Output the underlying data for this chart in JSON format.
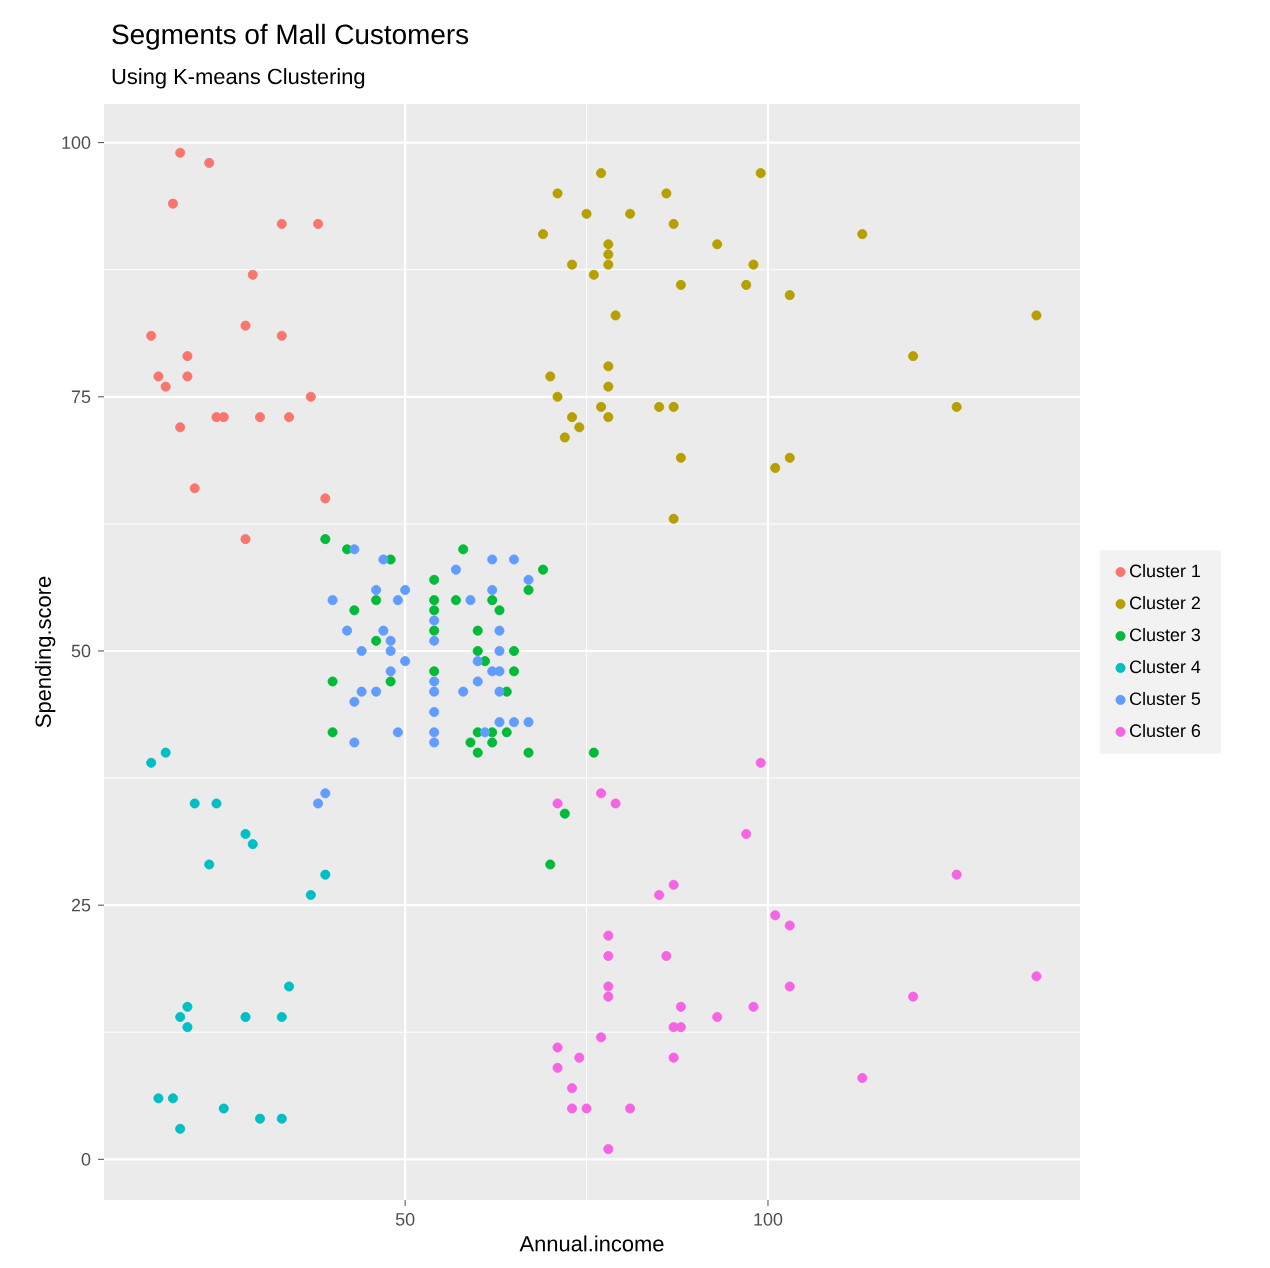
{
  "chart_data": {
    "type": "scatter",
    "title": "Segments of Mall Customers",
    "subtitle": "Using K-means Clustering",
    "xlabel": "Annual.income",
    "ylabel": "Spending.score",
    "xlim": [
      8.5,
      143
    ],
    "ylim": [
      -4,
      103.8
    ],
    "xticks": [
      50,
      100
    ],
    "yticks": [
      0,
      25,
      50,
      75,
      100
    ],
    "grid": true,
    "legend": "right",
    "marker": "circle",
    "series": [
      {
        "name": "Cluster 1",
        "color": "#f8766d",
        "x": [
          19,
          23,
          18,
          33,
          38,
          29,
          15,
          28,
          33,
          20,
          16,
          20,
          17,
          37,
          24,
          25,
          30,
          34,
          19,
          21,
          39,
          28
        ],
        "values": [
          99,
          98,
          94,
          92,
          92,
          87,
          81,
          82,
          81,
          79,
          77,
          77,
          76,
          75,
          73,
          73,
          73,
          73,
          72,
          66,
          65,
          61
        ]
      },
      {
        "name": "Cluster 2",
        "color": "#b79f00",
        "x": [
          77,
          99,
          71,
          86,
          75,
          81,
          87,
          69,
          113,
          78,
          93,
          78,
          73,
          78,
          98,
          76,
          88,
          97,
          103,
          79,
          137,
          120,
          70,
          78,
          71,
          78,
          85,
          87,
          126,
          77,
          73,
          78,
          74,
          72,
          88,
          101,
          103,
          87
        ],
        "values": [
          97,
          97,
          95,
          95,
          93,
          93,
          92,
          91,
          91,
          90,
          90,
          89,
          88,
          88,
          88,
          87,
          86,
          86,
          85,
          83,
          83,
          79,
          77,
          78,
          75,
          76,
          74,
          74,
          74,
          74,
          73,
          73,
          72,
          71,
          69,
          68,
          69,
          63
        ]
      },
      {
        "name": "Cluster 3",
        "color": "#00ba38",
        "x": [
          39,
          42,
          48,
          58,
          69,
          54,
          67,
          46,
          54,
          57,
          62,
          43,
          54,
          63,
          54,
          60,
          46,
          60,
          65,
          61,
          40,
          48,
          54,
          65,
          64,
          40,
          60,
          62,
          64,
          59,
          62,
          60,
          67,
          76,
          72,
          70
        ],
        "values": [
          61,
          60,
          59,
          60,
          58,
          57,
          56,
          55,
          55,
          55,
          55,
          54,
          54,
          54,
          52,
          52,
          51,
          50,
          50,
          49,
          47,
          47,
          48,
          48,
          46,
          42,
          42,
          42,
          42,
          41,
          41,
          40,
          40,
          40,
          34,
          29
        ]
      },
      {
        "name": "Cluster 4",
        "color": "#00bfc4",
        "x": [
          15,
          17,
          21,
          24,
          28,
          29,
          23,
          39,
          37,
          34,
          20,
          19,
          20,
          28,
          33,
          16,
          18,
          25,
          19,
          30,
          33
        ],
        "values": [
          39,
          40,
          35,
          35,
          32,
          31,
          29,
          28,
          26,
          17,
          15,
          14,
          13,
          14,
          14,
          6,
          6,
          5,
          3,
          4,
          4
        ]
      },
      {
        "name": "Cluster 5",
        "color": "#619cff",
        "x": [
          43,
          47,
          57,
          62,
          65,
          67,
          46,
          50,
          62,
          40,
          49,
          59,
          54,
          42,
          47,
          63,
          48,
          54,
          44,
          48,
          63,
          50,
          60,
          48,
          62,
          63,
          54,
          60,
          44,
          46,
          54,
          58,
          63,
          43,
          54,
          63,
          65,
          67,
          49,
          54,
          61,
          43,
          54,
          38,
          39
        ],
        "values": [
          60,
          59,
          58,
          59,
          59,
          57,
          56,
          56,
          56,
          55,
          55,
          55,
          53,
          52,
          52,
          52,
          51,
          51,
          50,
          50,
          50,
          49,
          49,
          48,
          48,
          48,
          47,
          47,
          46,
          46,
          46,
          46,
          46,
          45,
          44,
          43,
          43,
          43,
          42,
          42,
          42,
          41,
          41,
          35,
          36
        ]
      },
      {
        "name": "Cluster 6",
        "color": "#f564e3",
        "x": [
          99,
          71,
          77,
          79,
          97,
          126,
          85,
          87,
          101,
          103,
          78,
          78,
          86,
          78,
          103,
          137,
          78,
          120,
          88,
          98,
          93,
          87,
          88,
          77,
          71,
          74,
          87,
          71,
          113,
          73,
          73,
          75,
          81,
          78
        ],
        "values": [
          39,
          35,
          36,
          35,
          32,
          28,
          26,
          27,
          24,
          23,
          22,
          20,
          20,
          17,
          17,
          18,
          16,
          16,
          15,
          15,
          14,
          13,
          13,
          12,
          11,
          10,
          10,
          9,
          8,
          7,
          5,
          5,
          5,
          1
        ]
      }
    ]
  }
}
